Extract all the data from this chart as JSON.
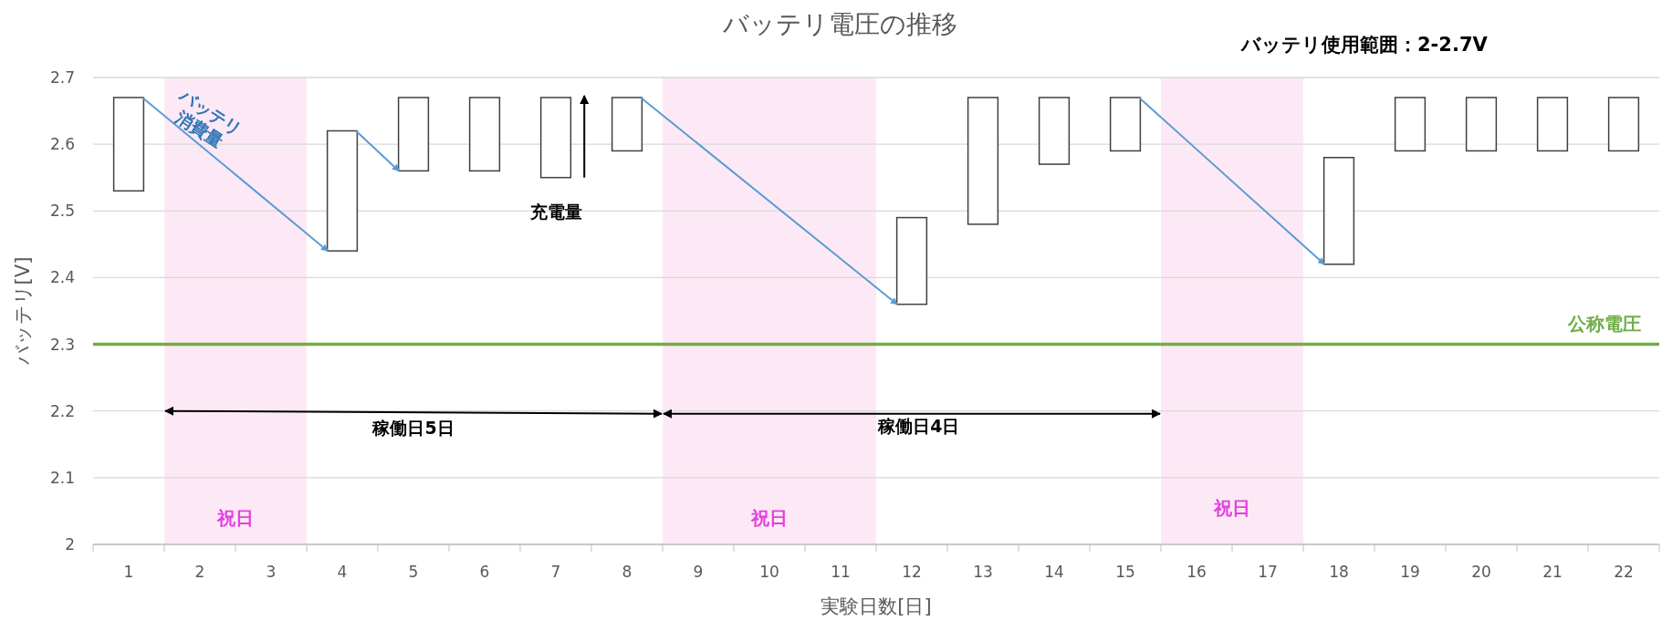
{
  "chart_data": {
    "type": "bar",
    "title": "バッテリ電圧の推移",
    "xlabel": "実験日数[日]",
    "ylabel": "バッテリ[V]",
    "x": [
      1,
      2,
      3,
      4,
      5,
      6,
      7,
      8,
      9,
      10,
      11,
      12,
      13,
      14,
      15,
      16,
      17,
      18,
      19,
      20,
      21,
      22
    ],
    "base": [
      2.53,
      null,
      null,
      2.44,
      2.56,
      2.56,
      2.55,
      2.59,
      null,
      null,
      null,
      2.36,
      2.48,
      2.57,
      2.59,
      null,
      null,
      2.42,
      2.59,
      2.59,
      2.59,
      2.59
    ],
    "values": [
      0.14,
      null,
      null,
      0.18,
      0.11,
      0.11,
      0.12,
      0.08,
      null,
      null,
      null,
      0.13,
      0.19,
      0.1,
      0.08,
      null,
      null,
      0.16,
      0.08,
      0.08,
      0.08,
      0.08
    ],
    "color": "#ffffff",
    "xlim": [
      0.5,
      22.5
    ],
    "xticks": [
      1,
      2,
      3,
      4,
      5,
      6,
      7,
      8,
      9,
      10,
      11,
      12,
      13,
      14,
      15,
      16,
      17,
      18,
      19,
      20,
      21,
      22
    ],
    "ylim": [
      2,
      2.7
    ],
    "yticks": [
      2,
      2.1,
      2.2,
      2.3,
      2.4,
      2.5,
      2.6,
      2.7
    ],
    "grid": "y",
    "ref_lines": [
      {
        "axis": "y",
        "value": 2.3,
        "label": "公称電圧",
        "color": "#70ad47"
      }
    ],
    "bands": [
      {
        "axis": "x",
        "from": 1.5,
        "to": 3.5,
        "label": "祝日",
        "color": "#fde9f5"
      },
      {
        "axis": "x",
        "from": 8.5,
        "to": 11.5,
        "label": "祝日",
        "color": "#fde9f5"
      },
      {
        "axis": "x",
        "from": 15.5,
        "to": 17.5,
        "label": "祝日",
        "color": "#fde9f5"
      }
    ],
    "annotations": [
      "バッテリ使用範囲：2-2.7V",
      "バッテリ\n消費量",
      "充電量",
      "稼働日5日",
      "稼働日4日"
    ]
  }
}
